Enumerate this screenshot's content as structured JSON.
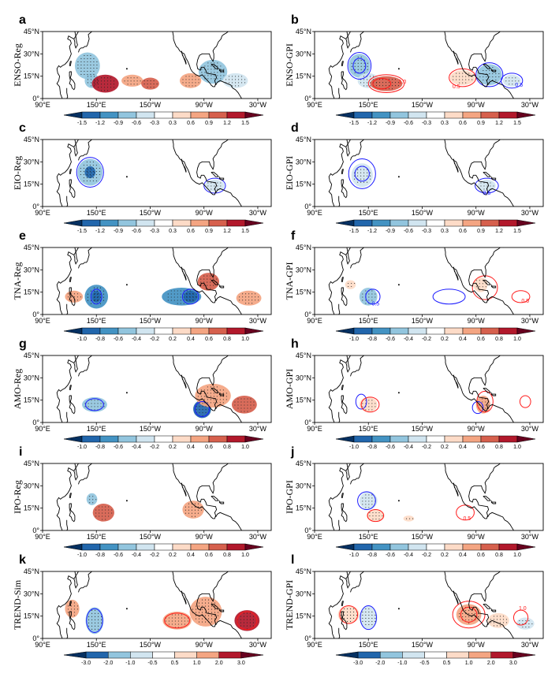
{
  "chart_data": {
    "type": "heatmap",
    "lon_labels": [
      "90°E",
      "150°E",
      "150°W",
      "90°W",
      "30°W"
    ],
    "lat_labels": [
      "45°N",
      "30°N",
      "15°N",
      "0°"
    ],
    "colors": {
      "blues": [
        "#053061",
        "#2166ac",
        "#4393c3",
        "#92c5de",
        "#d1e5f0"
      ],
      "white": "#ffffff",
      "reds": [
        "#fddbc7",
        "#f4a582",
        "#d6604d",
        "#b2182b",
        "#67001f"
      ],
      "contour_blue": "#1a1aff",
      "contour_red": "#ff1a1a"
    },
    "colorbars": [
      {
        "id": "a",
        "ticks": [
          "-1.5",
          "-1.2",
          "-0.9",
          "-0.6",
          "-0.3",
          "0.3",
          "0.6",
          "0.9",
          "1.2",
          "1.5"
        ]
      },
      {
        "id": "b",
        "ticks": [
          "-1.5",
          "-1.2",
          "-0.9",
          "-0.6",
          "-0.3",
          "0.3",
          "0.6",
          "0.9",
          "1.2",
          "1.5"
        ]
      },
      {
        "id": "c",
        "ticks": [
          "-1.5",
          "-1.2",
          "-0.9",
          "-0.6",
          "-0.3",
          "0.3",
          "0.6",
          "0.9",
          "1.2",
          "1.5"
        ]
      },
      {
        "id": "d",
        "ticks": [
          "-1.5",
          "-1.2",
          "-0.9",
          "-0.6",
          "-0.3",
          "0.3",
          "0.6",
          "0.9",
          "1.2",
          "1.5"
        ]
      },
      {
        "id": "e",
        "ticks": [
          "-1.0",
          "-0.8",
          "-0.6",
          "-0.4",
          "-0.2",
          "0.2",
          "0.4",
          "0.6",
          "0.8",
          "1.0"
        ]
      },
      {
        "id": "f",
        "ticks": [
          "-1.0",
          "-0.8",
          "-0.6",
          "-0.4",
          "-0.2",
          "0.2",
          "0.4",
          "0.6",
          "0.8",
          "1.0"
        ]
      },
      {
        "id": "g",
        "ticks": [
          "-1.0",
          "-0.8",
          "-0.6",
          "-0.4",
          "-0.2",
          "0.2",
          "0.4",
          "0.6",
          "0.8",
          "1.0"
        ]
      },
      {
        "id": "h",
        "ticks": [
          "-1.0",
          "-0.8",
          "-0.6",
          "-0.4",
          "-0.2",
          "0.2",
          "0.4",
          "0.6",
          "0.8",
          "1.0"
        ]
      },
      {
        "id": "i",
        "ticks": [
          "-1.0",
          "-0.8",
          "-0.6",
          "-0.4",
          "-0.2",
          "0.2",
          "0.4",
          "0.6",
          "0.8",
          "1.0"
        ]
      },
      {
        "id": "j",
        "ticks": [
          "-1.0",
          "-0.8",
          "-0.6",
          "-0.4",
          "-0.2",
          "0.2",
          "0.4",
          "0.6",
          "0.8",
          "1.0"
        ]
      },
      {
        "id": "k",
        "ticks": [
          "-3.0",
          "-2.0",
          "-1.0",
          "-0.5",
          "0.5",
          "1.0",
          "2.0",
          "3.0"
        ]
      },
      {
        "id": "l",
        "ticks": [
          "-3.0",
          "-2.0",
          "-1.0",
          "-0.5",
          "0.5",
          "1.0",
          "2.0",
          "3.0"
        ]
      }
    ],
    "panels": [
      {
        "id": "a",
        "letter": "a",
        "ylabel": "ENSO-Reg",
        "blobs": [
          {
            "lon": 140,
            "lat": 22,
            "rlon": 14,
            "rlat": 9,
            "value": -0.8
          },
          {
            "lon": 145,
            "lat": 12,
            "rlon": 8,
            "rlat": 5,
            "value": -0.6
          },
          {
            "lon": 160,
            "lat": 10,
            "rlon": 15,
            "rlat": 6,
            "value": 1.3
          },
          {
            "lon": 190,
            "lat": 12,
            "rlon": 12,
            "rlat": 4,
            "value": 0.6
          },
          {
            "lon": 210,
            "lat": 10,
            "rlon": 10,
            "rlat": 4,
            "value": 0.9
          },
          {
            "lon": 255,
            "lat": 12,
            "rlon": 12,
            "rlat": 5,
            "value": 0.7
          },
          {
            "lon": 280,
            "lat": 18,
            "rlon": 16,
            "rlat": 8,
            "value": -0.8
          },
          {
            "lon": 305,
            "lat": 12,
            "rlon": 14,
            "rlat": 5,
            "value": -0.5
          }
        ],
        "contours": [],
        "contour_labels": []
      },
      {
        "id": "b",
        "letter": "b",
        "ylabel": "ENSO-GPI",
        "blobs": [
          {
            "lon": 140,
            "lat": 22,
            "rlon": 12,
            "rlat": 8,
            "value": -0.6
          },
          {
            "lon": 150,
            "lat": 12,
            "rlon": 12,
            "rlat": 5,
            "value": -0.4
          },
          {
            "lon": 170,
            "lat": 10,
            "rlon": 18,
            "rlat": 5,
            "value": 0.9
          },
          {
            "lon": 255,
            "lat": 14,
            "rlon": 14,
            "rlat": 5,
            "value": 0.5
          },
          {
            "lon": 285,
            "lat": 16,
            "rlon": 14,
            "rlat": 7,
            "value": -0.6
          },
          {
            "lon": 310,
            "lat": 12,
            "rlon": 10,
            "rlat": 4,
            "value": -0.4
          }
        ],
        "contours": [
          {
            "color": "blue",
            "lon": 140,
            "lat": 22,
            "rlon": 13,
            "rlat": 9
          },
          {
            "color": "blue",
            "lon": 140,
            "lat": 22,
            "rlon": 7,
            "rlat": 5
          },
          {
            "color": "red",
            "lon": 170,
            "lat": 10,
            "rlon": 20,
            "rlat": 6
          },
          {
            "color": "red",
            "lon": 165,
            "lat": 10,
            "rlon": 10,
            "rlat": 3.5
          },
          {
            "color": "red",
            "lon": 255,
            "lat": 14,
            "rlon": 15,
            "rlat": 6
          },
          {
            "color": "blue",
            "lon": 285,
            "lat": 16,
            "rlon": 15,
            "rlat": 8
          },
          {
            "color": "blue",
            "lon": 310,
            "lat": 12,
            "rlon": 12,
            "rlat": 5
          }
        ],
        "contour_labels": [
          {
            "color": "red",
            "lon": 188,
            "lat": 10,
            "text": "1.0"
          },
          {
            "color": "red",
            "lon": 248,
            "lat": 7,
            "text": "0.5"
          },
          {
            "color": "blue",
            "lon": 318,
            "lat": 8,
            "text": "0.5"
          }
        ]
      },
      {
        "id": "c",
        "letter": "c",
        "ylabel": "EIO-Reg",
        "blobs": [
          {
            "lon": 143,
            "lat": 23,
            "rlon": 14,
            "rlat": 9,
            "value": -0.8
          },
          {
            "lon": 143,
            "lat": 23,
            "rlon": 6,
            "rlat": 4,
            "value": -1.2
          },
          {
            "lon": 282,
            "lat": 14,
            "rlon": 11,
            "rlat": 4,
            "value": -0.5
          }
        ],
        "contours": [
          {
            "color": "blue",
            "lon": 143,
            "lat": 23,
            "rlon": 15,
            "rlat": 10
          },
          {
            "color": "blue",
            "lon": 282,
            "lat": 14,
            "rlon": 12,
            "rlat": 5
          }
        ],
        "contour_labels": []
      },
      {
        "id": "d",
        "letter": "d",
        "ylabel": "EIO-GPI",
        "blobs": [
          {
            "lon": 143,
            "lat": 21,
            "rlon": 12,
            "rlat": 8,
            "value": -0.4
          },
          {
            "lon": 282,
            "lat": 14,
            "rlon": 10,
            "rlat": 4,
            "value": -0.3
          }
        ],
        "contours": [
          {
            "color": "blue",
            "lon": 143,
            "lat": 22,
            "rlon": 15,
            "rlat": 10
          },
          {
            "color": "blue",
            "lon": 143,
            "lat": 22,
            "rlon": 8,
            "rlat": 5
          },
          {
            "color": "blue",
            "lon": 282,
            "lat": 14,
            "rlon": 13,
            "rlat": 5
          }
        ],
        "contour_labels": [
          {
            "color": "blue",
            "lon": 282,
            "lat": 8,
            "text": "0.5"
          }
        ]
      },
      {
        "id": "e",
        "letter": "e",
        "ylabel": "TNA-Reg",
        "blobs": [
          {
            "lon": 125,
            "lat": 12,
            "rlon": 10,
            "rlat": 4,
            "value": 0.4
          },
          {
            "lon": 150,
            "lat": 12,
            "rlon": 13,
            "rlat": 8,
            "value": -0.6
          },
          {
            "lon": 150,
            "lat": 12,
            "rlon": 5,
            "rlat": 4,
            "value": -0.8
          },
          {
            "lon": 245,
            "lat": 12,
            "rlon": 22,
            "rlat": 6,
            "value": -0.6
          },
          {
            "lon": 255,
            "lat": 12,
            "rlon": 8,
            "rlat": 4,
            "value": -0.9
          },
          {
            "lon": 275,
            "lat": 22,
            "rlon": 12,
            "rlat": 6,
            "value": 0.6
          },
          {
            "lon": 320,
            "lat": 11,
            "rlon": 14,
            "rlat": 5,
            "value": 0.5
          }
        ],
        "contours": [
          {
            "color": "blue",
            "lon": 150,
            "lat": 12,
            "rlon": 6,
            "rlat": 5
          },
          {
            "color": "blue",
            "lon": 255,
            "lat": 12,
            "rlon": 9,
            "rlat": 5
          }
        ],
        "contour_labels": []
      },
      {
        "id": "f",
        "letter": "f",
        "ylabel": "TNA-GPI",
        "blobs": [
          {
            "lon": 150,
            "lat": 12,
            "rlon": 10,
            "rlat": 6,
            "value": -0.4
          },
          {
            "lon": 130,
            "lat": 20,
            "rlon": 6,
            "rlat": 3,
            "value": 0.2
          },
          {
            "lon": 275,
            "lat": 20,
            "rlon": 8,
            "rlat": 5,
            "value": 0.3
          }
        ],
        "contours": [
          {
            "color": "blue",
            "lon": 155,
            "lat": 12,
            "rlon": 8,
            "rlat": 5
          },
          {
            "color": "blue",
            "lon": 240,
            "lat": 12,
            "rlon": 18,
            "rlat": 5
          },
          {
            "color": "red",
            "lon": 280,
            "lat": 18,
            "rlon": 14,
            "rlat": 8
          },
          {
            "color": "red",
            "lon": 320,
            "lat": 12,
            "rlon": 10,
            "rlat": 4
          }
        ],
        "contour_labels": [
          {
            "color": "blue",
            "lon": 158,
            "lat": 6,
            "text": "0.5"
          },
          {
            "color": "red",
            "lon": 325,
            "lat": 8,
            "text": "0.5"
          }
        ]
      },
      {
        "id": "g",
        "letter": "g",
        "ylabel": "AMO-Reg",
        "blobs": [
          {
            "lon": 148,
            "lat": 12,
            "rlon": 14,
            "rlat": 5,
            "value": -0.4
          },
          {
            "lon": 268,
            "lat": 9,
            "rlon": 10,
            "rlat": 6,
            "value": -0.9
          },
          {
            "lon": 280,
            "lat": 18,
            "rlon": 20,
            "rlat": 8,
            "value": 0.4
          },
          {
            "lon": 315,
            "lat": 12,
            "rlon": 14,
            "rlat": 6,
            "value": 0.6
          }
        ],
        "contours": [
          {
            "color": "blue",
            "lon": 148,
            "lat": 12,
            "rlon": 10,
            "rlat": 4
          },
          {
            "color": "blue",
            "lon": 268,
            "lat": 9,
            "rlon": 8,
            "rlat": 5
          }
        ],
        "contour_labels": []
      },
      {
        "id": "h",
        "letter": "h",
        "ylabel": "AMO-GPI",
        "blobs": [
          {
            "lon": 150,
            "lat": 12,
            "rlon": 10,
            "rlat": 5,
            "value": 0.3
          },
          {
            "lon": 278,
            "lat": 12,
            "rlon": 8,
            "rlat": 6,
            "value": 0.4
          }
        ],
        "contours": [
          {
            "color": "blue",
            "lon": 142,
            "lat": 14,
            "rlon": 6,
            "rlat": 5
          },
          {
            "color": "red",
            "lon": 152,
            "lat": 12,
            "rlon": 10,
            "rlat": 5
          },
          {
            "color": "blue",
            "lon": 272,
            "lat": 10,
            "rlon": 6,
            "rlat": 4
          },
          {
            "color": "red",
            "lon": 280,
            "lat": 14,
            "rlon": 9,
            "rlat": 7
          },
          {
            "color": "red",
            "lon": 325,
            "lat": 14,
            "rlon": 6,
            "rlat": 4
          }
        ],
        "contour_labels": []
      },
      {
        "id": "i",
        "letter": "i",
        "ylabel": "IPO-Reg",
        "blobs": [
          {
            "lon": 145,
            "lat": 21,
            "rlon": 6,
            "rlat": 4,
            "value": -0.4
          },
          {
            "lon": 158,
            "lat": 12,
            "rlon": 12,
            "rlat": 6,
            "value": 0.6
          },
          {
            "lon": 258,
            "lat": 14,
            "rlon": 12,
            "rlat": 6,
            "value": 0.5
          }
        ],
        "contours": [],
        "contour_labels": []
      },
      {
        "id": "j",
        "letter": "j",
        "ylabel": "IPO-GPI",
        "blobs": [
          {
            "lon": 150,
            "lat": 20,
            "rlon": 10,
            "rlat": 6,
            "value": -0.3
          },
          {
            "lon": 158,
            "lat": 10,
            "rlon": 10,
            "rlat": 4,
            "value": 0.3
          },
          {
            "lon": 195,
            "lat": 8,
            "rlon": 6,
            "rlat": 2,
            "value": 0.3
          }
        ],
        "contours": [
          {
            "color": "blue",
            "lon": 148,
            "lat": 20,
            "rlon": 10,
            "rlat": 6
          },
          {
            "color": "red",
            "lon": 158,
            "lat": 10,
            "rlon": 9,
            "rlat": 4
          },
          {
            "color": "red",
            "lon": 258,
            "lat": 12,
            "rlon": 10,
            "rlat": 5
          }
        ],
        "contour_labels": [
          {
            "color": "red",
            "lon": 260,
            "lat": 7,
            "text": "0.5"
          }
        ]
      },
      {
        "id": "k",
        "letter": "k",
        "ylabel": "TREND-Sim",
        "blobs": [
          {
            "lon": 123,
            "lat": 20,
            "rlon": 8,
            "rlat": 6,
            "value": 1.5
          },
          {
            "lon": 148,
            "lat": 12,
            "rlon": 10,
            "rlat": 9,
            "value": -1.5
          },
          {
            "lon": 240,
            "lat": 12,
            "rlon": 16,
            "rlat": 6,
            "value": 1.5
          },
          {
            "lon": 272,
            "lat": 18,
            "rlon": 18,
            "rlat": 10,
            "value": 1.0
          },
          {
            "lon": 318,
            "lat": 12,
            "rlon": 14,
            "rlat": 7,
            "value": 2.5
          }
        ],
        "contours": [
          {
            "color": "blue",
            "lon": 148,
            "lat": 12,
            "rlon": 9,
            "rlat": 8
          },
          {
            "color": "red",
            "lon": 240,
            "lat": 12,
            "rlon": 14,
            "rlat": 5
          },
          {
            "color": "red",
            "lon": 318,
            "lat": 12,
            "rlon": 11,
            "rlat": 6
          }
        ],
        "contour_labels": []
      },
      {
        "id": "l",
        "letter": "l",
        "ylabel": "TREND-GPI",
        "blobs": [
          {
            "lon": 128,
            "lat": 16,
            "rlon": 12,
            "rlat": 6,
            "value": 0.8
          },
          {
            "lon": 150,
            "lat": 14,
            "rlon": 10,
            "rlat": 8,
            "value": -0.7
          },
          {
            "lon": 262,
            "lat": 16,
            "rlon": 14,
            "rlat": 7,
            "value": 1.5
          },
          {
            "lon": 295,
            "lat": 12,
            "rlon": 12,
            "rlat": 5,
            "value": 0.8
          },
          {
            "lon": 325,
            "lat": 10,
            "rlon": 10,
            "rlat": 4,
            "value": -0.7
          }
        ],
        "contours": [
          {
            "color": "red",
            "lon": 128,
            "lat": 16,
            "rlon": 10,
            "rlat": 6
          },
          {
            "color": "blue",
            "lon": 150,
            "lat": 14,
            "rlon": 9,
            "rlat": 8
          },
          {
            "color": "red",
            "lon": 262,
            "lat": 16,
            "rlon": 18,
            "rlat": 9
          },
          {
            "color": "red",
            "lon": 262,
            "lat": 16,
            "rlon": 9,
            "rlat": 5
          },
          {
            "color": "red",
            "lon": 320,
            "lat": 14,
            "rlon": 8,
            "rlat": 5
          }
        ],
        "contour_labels": [
          {
            "color": "red",
            "lon": 322,
            "lat": 19,
            "text": "1.0"
          }
        ]
      }
    ]
  }
}
